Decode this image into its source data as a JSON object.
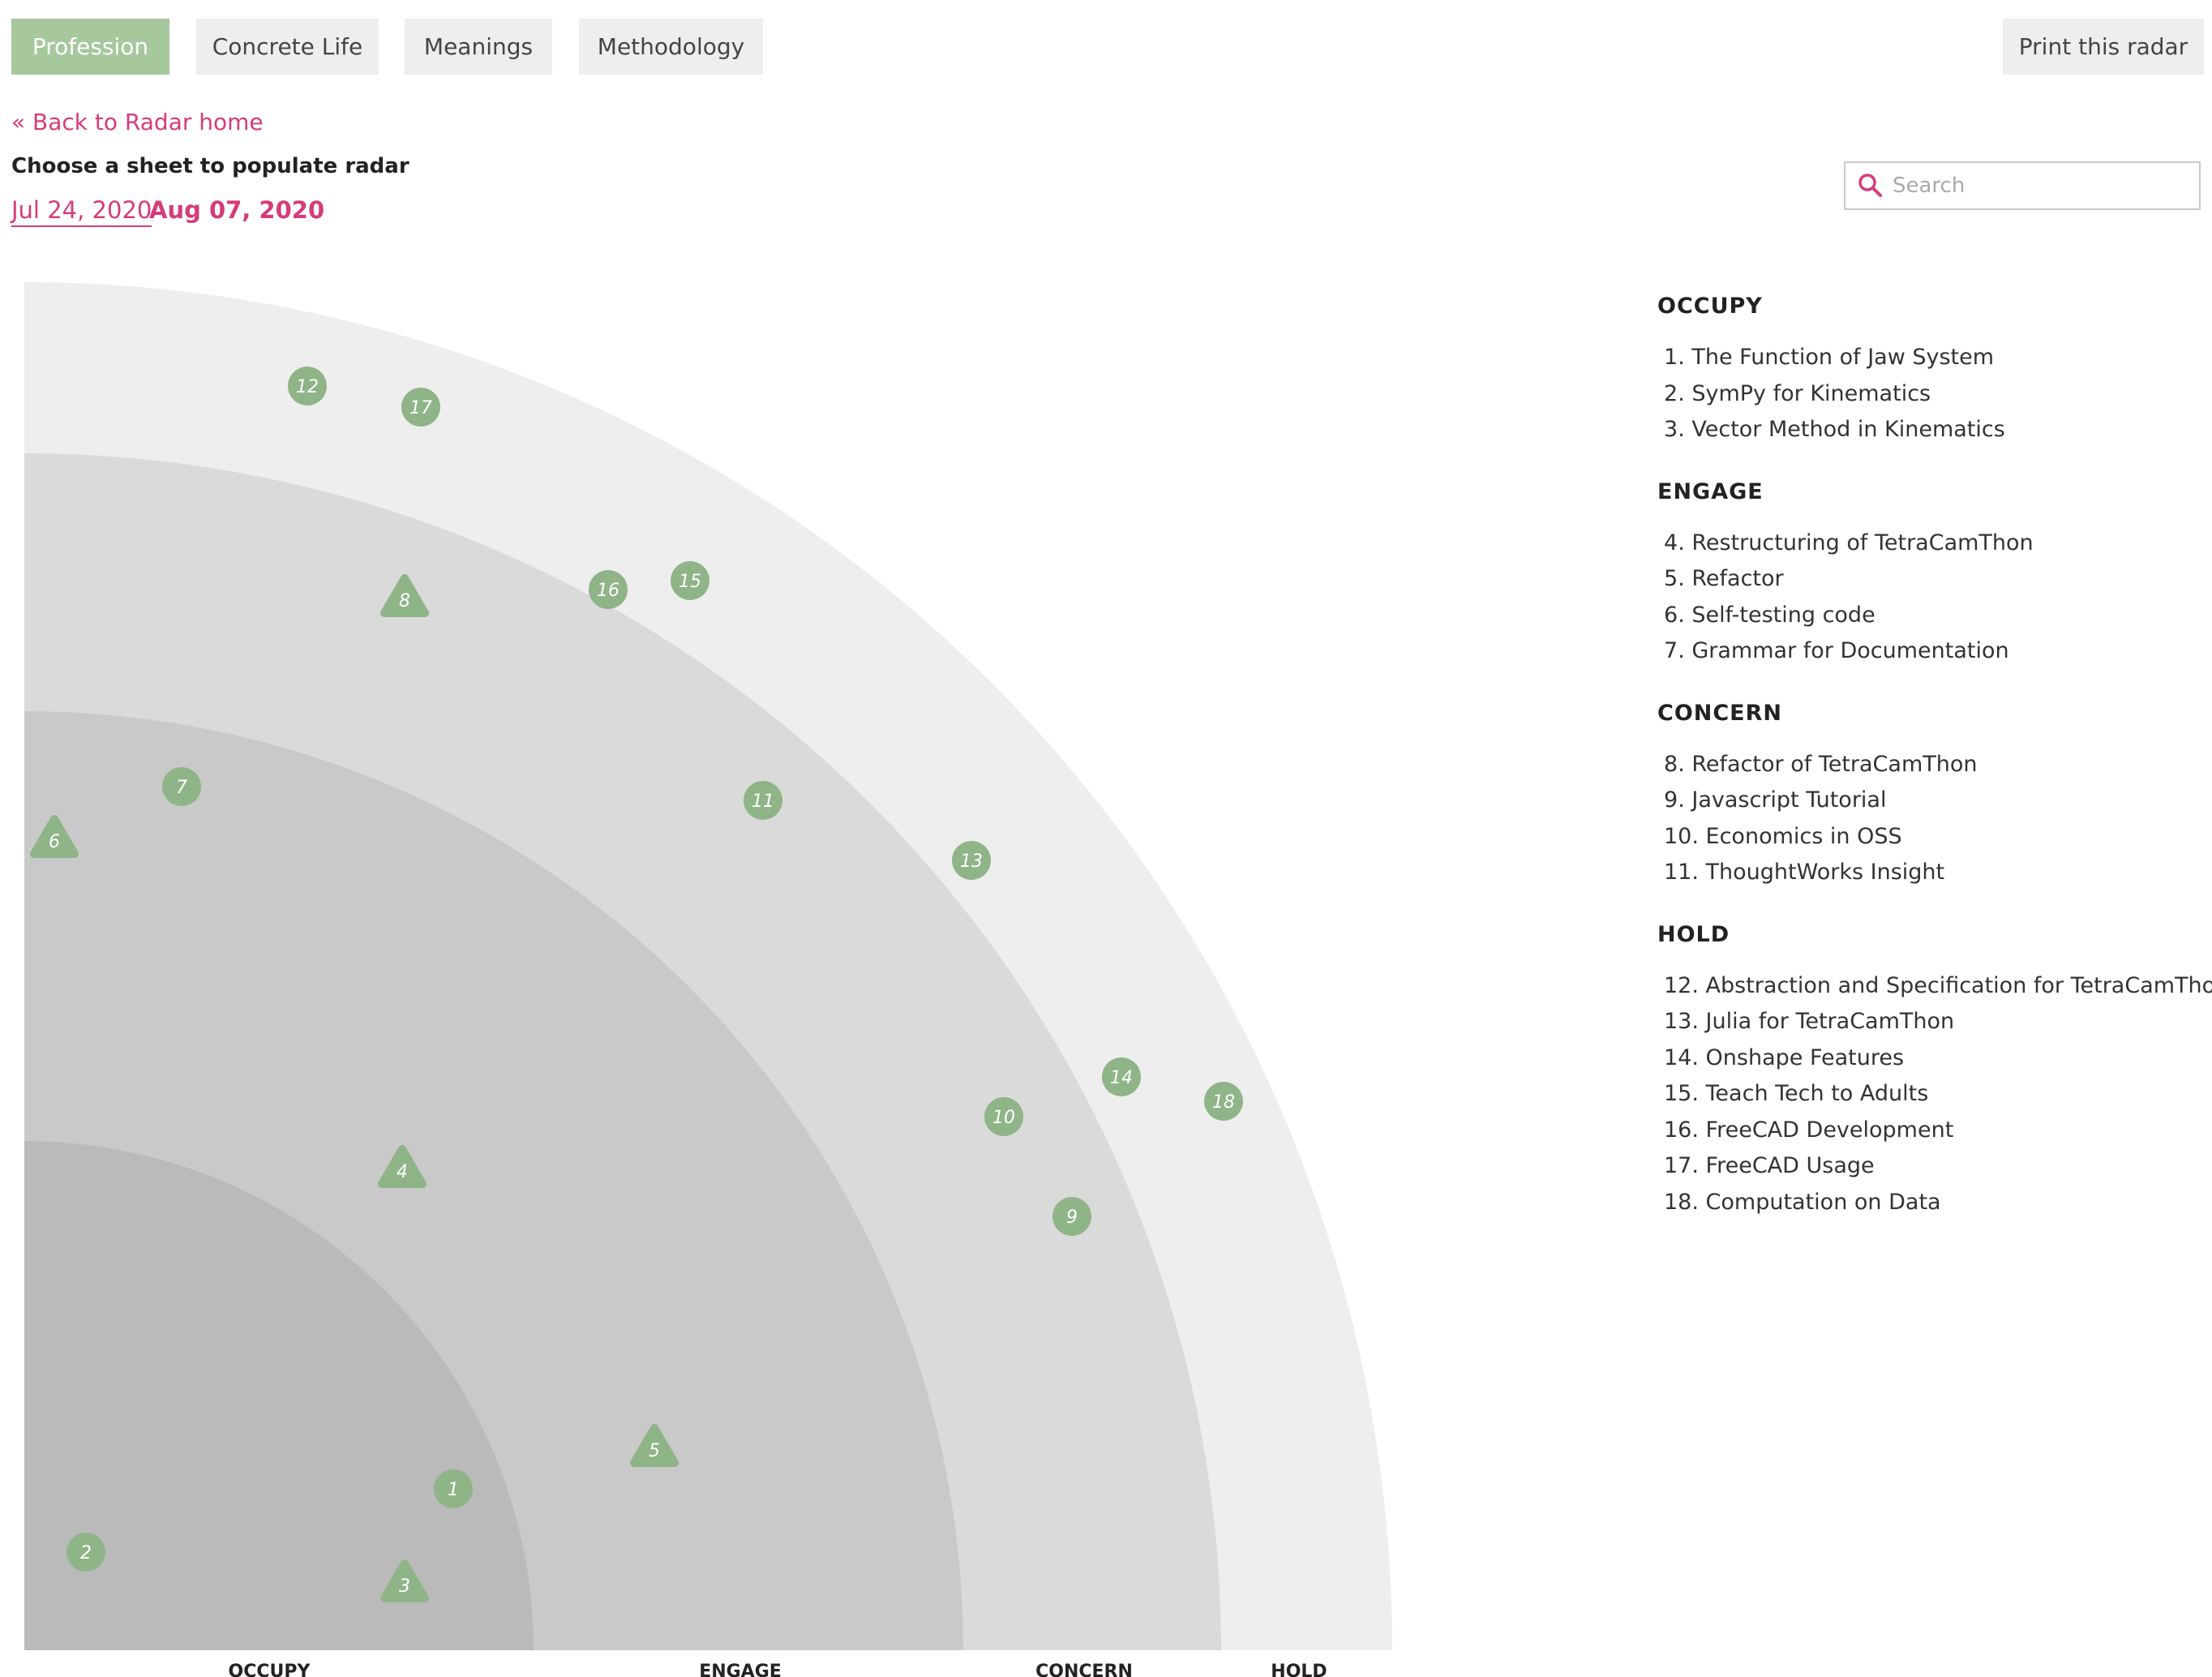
{
  "tabs": [
    {
      "label": "Profession",
      "active": true
    },
    {
      "label": "Concrete Life",
      "active": false
    },
    {
      "label": "Meanings",
      "active": false
    },
    {
      "label": "Methodology",
      "active": false
    }
  ],
  "print_label": "Print this radar",
  "back_link": "« Back to Radar home",
  "choose_label": "Choose a sheet to populate radar",
  "dates": [
    "Jul 24, 2020",
    "Aug 07, 2020"
  ],
  "search": {
    "placeholder": "Search",
    "value": ""
  },
  "colors": {
    "accent": "#d63b7a",
    "tab_active": "#a7c79d",
    "blip": "#8fb487",
    "ring_occupy": "#bababa",
    "ring_engage": "#c9c9c9",
    "ring_concern": "#dadada",
    "ring_hold": "#eeeeee"
  },
  "rings": [
    "OCCUPY",
    "ENGAGE",
    "CONCERN",
    "HOLD"
  ],
  "legend": [
    {
      "title": "OCCUPY",
      "items": [
        {
          "num": 1,
          "label": "The Function of Jaw System"
        },
        {
          "num": 2,
          "label": "SymPy for Kinematics"
        },
        {
          "num": 3,
          "label": "Vector Method in Kinematics"
        }
      ]
    },
    {
      "title": "ENGAGE",
      "items": [
        {
          "num": 4,
          "label": "Restructuring of TetraCamThon"
        },
        {
          "num": 5,
          "label": "Refactor"
        },
        {
          "num": 6,
          "label": "Self-testing code"
        },
        {
          "num": 7,
          "label": "Grammar for Documentation"
        }
      ]
    },
    {
      "title": "CONCERN",
      "items": [
        {
          "num": 8,
          "label": "Refactor of TetraCamThon"
        },
        {
          "num": 9,
          "label": "Javascript Tutorial"
        },
        {
          "num": 10,
          "label": "Economics in OSS"
        },
        {
          "num": 11,
          "label": "ThoughtWorks Insight"
        }
      ]
    },
    {
      "title": "HOLD",
      "items": [
        {
          "num": 12,
          "label": "Abstraction and Specification for TetraCamThon"
        },
        {
          "num": 13,
          "label": "Julia for TetraCamThon"
        },
        {
          "num": 14,
          "label": "Onshape Features"
        },
        {
          "num": 15,
          "label": "Teach Tech to Adults"
        },
        {
          "num": 16,
          "label": "FreeCAD Development"
        },
        {
          "num": 17,
          "label": "FreeCAD Usage"
        },
        {
          "num": 18,
          "label": "Computation on Data"
        }
      ]
    }
  ],
  "blips": [
    {
      "num": 1,
      "shape": "circle"
    },
    {
      "num": 2,
      "shape": "circle"
    },
    {
      "num": 3,
      "shape": "triangle"
    },
    {
      "num": 4,
      "shape": "triangle"
    },
    {
      "num": 5,
      "shape": "triangle"
    },
    {
      "num": 6,
      "shape": "triangle"
    },
    {
      "num": 7,
      "shape": "circle"
    },
    {
      "num": 8,
      "shape": "triangle"
    },
    {
      "num": 9,
      "shape": "circle"
    },
    {
      "num": 10,
      "shape": "circle"
    },
    {
      "num": 11,
      "shape": "circle"
    },
    {
      "num": 12,
      "shape": "circle"
    },
    {
      "num": 13,
      "shape": "circle"
    },
    {
      "num": 14,
      "shape": "circle"
    },
    {
      "num": 15,
      "shape": "circle"
    },
    {
      "num": 16,
      "shape": "circle"
    },
    {
      "num": 17,
      "shape": "circle"
    },
    {
      "num": 18,
      "shape": "circle"
    }
  ]
}
